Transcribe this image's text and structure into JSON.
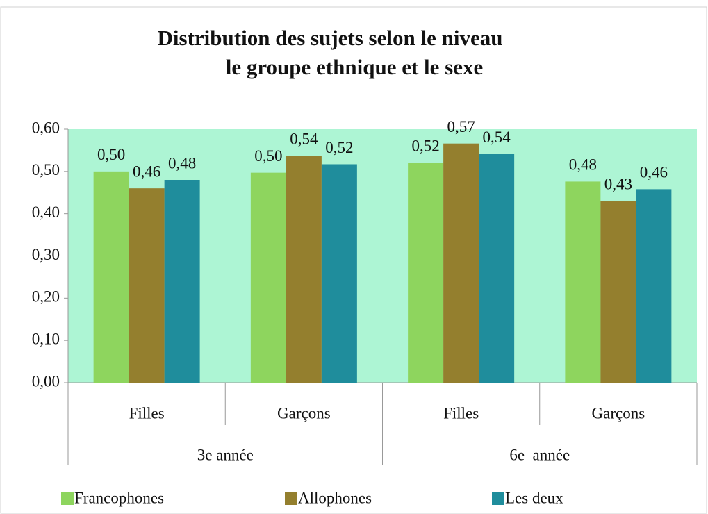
{
  "chart_data": {
    "type": "bar",
    "title": [
      "Distribution des sujets selon le niveau",
      "le groupe ethnique et le sexe"
    ],
    "categories": [
      "Filles",
      "Garçons",
      "Filles",
      "Garçons"
    ],
    "groups": [
      "3e année",
      "6e  année"
    ],
    "series": [
      {
        "name": "Francophones",
        "color": "#8ed55e",
        "values": [
          0.5,
          0.497,
          0.521,
          0.476
        ],
        "value_labels": [
          "0,50",
          "0,50",
          "0,52",
          "0,48"
        ]
      },
      {
        "name": "Allophones",
        "color": "#947f2e",
        "values": [
          0.46,
          0.537,
          0.566,
          0.43
        ],
        "value_labels": [
          "0,46",
          "0,54",
          "0,57",
          "0,43"
        ]
      },
      {
        "name": "Les deux",
        "color": "#1f8d9c",
        "values": [
          0.48,
          0.517,
          0.541,
          0.458
        ],
        "value_labels": [
          "0,48",
          "0,52",
          "0,54",
          "0,46"
        ]
      }
    ],
    "ylim": [
      0,
      0.6
    ],
    "yticks": [
      {
        "value": 0,
        "label": "0,00"
      },
      {
        "value": 0.1,
        "label": "0,10"
      },
      {
        "value": 0.2,
        "label": "0,20"
      },
      {
        "value": 0.3,
        "label": "0,30"
      },
      {
        "value": 0.4,
        "label": "0,40"
      },
      {
        "value": 0.5,
        "label": "0,50"
      },
      {
        "value": 0.6,
        "label": "0,60"
      }
    ],
    "plot_background": "#adf5d4",
    "legend": "bottom"
  }
}
